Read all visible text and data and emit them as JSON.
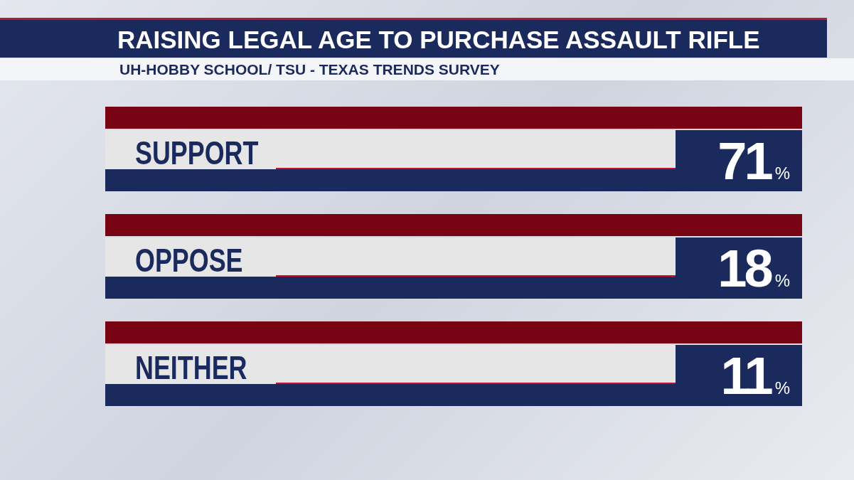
{
  "chart_data": {
    "type": "other",
    "title": "RAISING LEGAL AGE TO PURCHASE ASSAULT RIFLE",
    "subtitle": "UH-HOBBY SCHOOL/ TSU - TEXAS TRENDS SURVEY",
    "categories": [
      "SUPPORT",
      "OPPOSE",
      "NEITHER"
    ],
    "values": [
      71,
      18,
      11
    ],
    "value_labels": [
      "71%",
      "18%",
      "11%"
    ]
  }
}
